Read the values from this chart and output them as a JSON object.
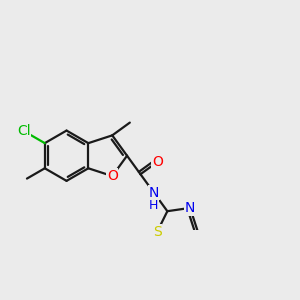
{
  "background_color": "#ebebeb",
  "bond_color": "#1a1a1a",
  "bond_width": 1.6,
  "atom_colors": {
    "Cl": "#00bb00",
    "O": "#ff0000",
    "N": "#0000ee",
    "S": "#cccc00",
    "C": "#1a1a1a"
  },
  "font_size": 10,
  "font_size_small": 9
}
